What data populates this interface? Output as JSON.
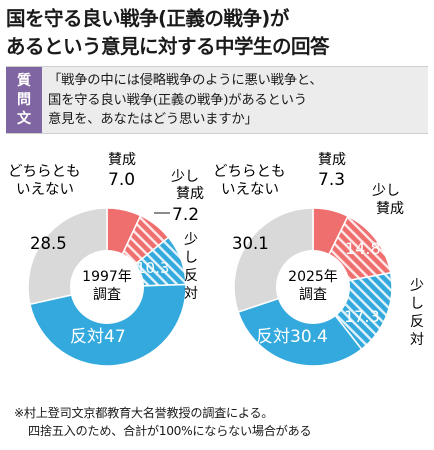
{
  "title": {
    "line1": "国を守る良い戦争(正義の戦争)が",
    "line2": "あるという意見に対する中学生の回答"
  },
  "question": {
    "label_top": "質",
    "label_mid": "問",
    "label_bottom": "文",
    "line1": "「戦争の中には侵略戦争のように悪い戦争と、",
    "line2": "国を守る良い戦争(正義の戦争)があるという",
    "line3": "意見を、あなたはどう思いますか」"
  },
  "colors": {
    "agree": "#ef6e6e",
    "somewhat_agree": "#ef6e6e",
    "somewhat_disagree": "#33a9dd",
    "disagree": "#33a9dd",
    "neutral": "#d9d9d9",
    "label_bg": "#7f65a1"
  },
  "chart_data": [
    {
      "type": "pie",
      "center_label": [
        "1997年",
        "調査"
      ],
      "categories": [
        "賛成",
        "少し賛成",
        "少し反対",
        "反対",
        "どちらともいえない"
      ],
      "values": [
        7.0,
        7.2,
        10.3,
        47,
        28.5
      ],
      "labels": {
        "agree_name": "賛成",
        "agree_value": "7.0",
        "somewhat_agree_name_1": "少し",
        "somewhat_agree_name_2": "賛成",
        "somewhat_agree_value": "7.2",
        "somewhat_disagree_name_1": "少",
        "somewhat_disagree_name_2": "し",
        "somewhat_disagree_name_3": "反",
        "somewhat_disagree_name_4": "対",
        "somewhat_disagree_value": "10.3",
        "disagree_text": "反対47",
        "neutral_name_1": "どちらとも",
        "neutral_name_2": "いえない",
        "neutral_value": "28.5"
      }
    },
    {
      "type": "pie",
      "center_label": [
        "2025年",
        "調査"
      ],
      "categories": [
        "賛成",
        "少し賛成",
        "少し反対",
        "反対",
        "どちらともいえない"
      ],
      "values": [
        7.3,
        14.8,
        17.3,
        30.4,
        30.1
      ],
      "labels": {
        "agree_name": "賛成",
        "agree_value": "7.3",
        "somewhat_agree_name_1": "少し",
        "somewhat_agree_name_2": "賛成",
        "somewhat_agree_value": "14.8",
        "somewhat_disagree_name_1": "少",
        "somewhat_disagree_name_2": "し",
        "somewhat_disagree_name_3": "反",
        "somewhat_disagree_name_4": "対",
        "somewhat_disagree_value": "17.3",
        "disagree_text": "反対30.4",
        "neutral_name_1": "どちらとも",
        "neutral_name_2": "いえない",
        "neutral_value": "30.1"
      }
    }
  ],
  "note": {
    "line1": "※村上登司文京都教育大名誉教授の調査による。",
    "line2": "四捨五入のため、合計が100%にならない場合がある"
  }
}
